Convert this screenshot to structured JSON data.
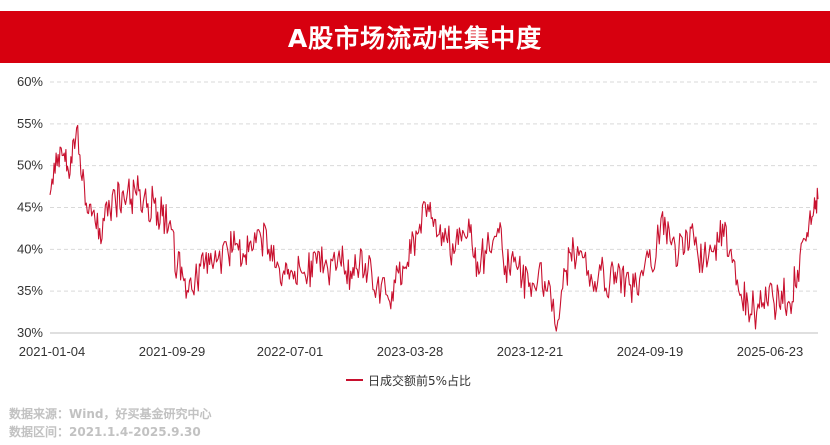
{
  "header": {
    "title": "A股市场流动性集中度"
  },
  "footnotes": {
    "source": "数据来源：Wind，好买基金研究中心",
    "range": "数据区间：2021.1.4-2025.9.30"
  },
  "colors": {
    "banner": "#d7000f",
    "line": "#c8102e",
    "grid": "#d9d9d9"
  },
  "chart_data": {
    "type": "line",
    "title": "",
    "xlabel": "",
    "ylabel": "",
    "ylim": [
      0.3,
      0.6
    ],
    "y_ticks": [
      0.3,
      0.35,
      0.4,
      0.45,
      0.5,
      0.55,
      0.6
    ],
    "y_tick_labels": [
      "30%",
      "35%",
      "40%",
      "45%",
      "50%",
      "55%",
      "60%"
    ],
    "x_tick_labels": [
      "2021-01-04",
      "2021-09-29",
      "2022-07-01",
      "2023-03-28",
      "2023-12-21",
      "2024-09-19",
      "2025-06-23"
    ],
    "x_range": [
      "2021-01-04",
      "2025-09-30"
    ],
    "grid": "horizontal dashed",
    "legend_position": "bottom-center",
    "series": [
      {
        "name": "日成交额前5%占比",
        "x": [
          "2021-01-04",
          "2021-01-20",
          "2021-02-05",
          "2021-02-18",
          "2021-03-05",
          "2021-03-22",
          "2021-04-08",
          "2021-04-26",
          "2021-05-14",
          "2021-06-01",
          "2021-06-18",
          "2021-07-06",
          "2021-07-23",
          "2021-08-10",
          "2021-08-27",
          "2021-09-14",
          "2021-09-29",
          "2021-10-18",
          "2021-11-04",
          "2021-11-22",
          "2021-12-09",
          "2021-12-27",
          "2022-01-14",
          "2022-02-08",
          "2022-02-25",
          "2022-03-15",
          "2022-04-01",
          "2022-04-22",
          "2022-05-12",
          "2022-05-31",
          "2022-06-17",
          "2022-07-01",
          "2022-07-20",
          "2022-08-08",
          "2022-08-25",
          "2022-09-14",
          "2022-10-10",
          "2022-10-27",
          "2022-11-15",
          "2022-12-02",
          "2022-12-21",
          "2023-01-10",
          "2023-02-03",
          "2023-02-21",
          "2023-03-10",
          "2023-03-28",
          "2023-04-17",
          "2023-05-08",
          "2023-05-25",
          "2023-06-13",
          "2023-07-03",
          "2023-07-20",
          "2023-08-08",
          "2023-08-25",
          "2023-09-14",
          "2023-10-10",
          "2023-10-27",
          "2023-11-15",
          "2023-12-04",
          "2023-12-21",
          "2024-01-10",
          "2024-01-29",
          "2024-02-22",
          "2024-03-12",
          "2024-03-29",
          "2024-04-18",
          "2024-05-10",
          "2024-05-29",
          "2024-06-18",
          "2024-07-05",
          "2024-07-24",
          "2024-08-12",
          "2024-08-29",
          "2024-09-19",
          "2024-10-15",
          "2024-11-01",
          "2024-11-20",
          "2024-12-09",
          "2024-12-26",
          "2025-01-15",
          "2025-02-10",
          "2025-02-27",
          "2025-03-18",
          "2025-04-07",
          "2025-04-25",
          "2025-05-15",
          "2025-06-04",
          "2025-06-23",
          "2025-07-10",
          "2025-07-29",
          "2025-08-15",
          "2025-09-03",
          "2025-09-19",
          "2025-09-30"
        ],
        "values": [
          0.465,
          0.5,
          0.515,
          0.49,
          0.545,
          0.48,
          0.44,
          0.425,
          0.44,
          0.455,
          0.47,
          0.46,
          0.47,
          0.45,
          0.455,
          0.44,
          0.43,
          0.38,
          0.365,
          0.35,
          0.38,
          0.395,
          0.385,
          0.4,
          0.405,
          0.395,
          0.41,
          0.42,
          0.4,
          0.385,
          0.37,
          0.375,
          0.38,
          0.37,
          0.395,
          0.38,
          0.375,
          0.385,
          0.365,
          0.38,
          0.375,
          0.355,
          0.345,
          0.36,
          0.38,
          0.395,
          0.43,
          0.445,
          0.415,
          0.425,
          0.395,
          0.41,
          0.42,
          0.385,
          0.395,
          0.425,
          0.38,
          0.385,
          0.365,
          0.36,
          0.375,
          0.35,
          0.315,
          0.375,
          0.4,
          0.39,
          0.36,
          0.375,
          0.36,
          0.37,
          0.365,
          0.355,
          0.375,
          0.38,
          0.445,
          0.41,
          0.395,
          0.42,
          0.405,
          0.385,
          0.405,
          0.43,
          0.4,
          0.345,
          0.335,
          0.325,
          0.355,
          0.335,
          0.35,
          0.335,
          0.375,
          0.41,
          0.44,
          0.46
        ]
      }
    ]
  }
}
